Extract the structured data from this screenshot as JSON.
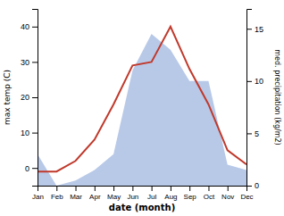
{
  "chart_data": {
    "type": "line",
    "xlabel": "date (month)",
    "ylabel": "max temp (C)",
    "y2label": "med. precipitation (kg/m2)",
    "categories": [
      "Jan",
      "Feb",
      "Mar",
      "Apr",
      "May",
      "Jun",
      "Jul",
      "Aug",
      "Sep",
      "Oct",
      "Nov",
      "Dec"
    ],
    "series": [
      {
        "type": "area",
        "axis": "y2",
        "color": "#b8c9e8",
        "values": [
          3.0,
          0.0,
          0.5,
          1.5,
          3.0,
          11.0,
          14.5,
          13.0,
          10.0,
          10.0,
          2.0,
          1.5
        ]
      },
      {
        "type": "line",
        "color": "#c0392b",
        "values": [
          -1,
          -1,
          2,
          8,
          18,
          29,
          30,
          40,
          28,
          18,
          5,
          1
        ]
      }
    ],
    "ylim": [
      -5,
      45
    ],
    "yticks": [
      0,
      10,
      20,
      30,
      40
    ],
    "y2lim": [
      0,
      16.9
    ],
    "y2ticks": [
      0,
      5,
      10,
      15
    ]
  }
}
